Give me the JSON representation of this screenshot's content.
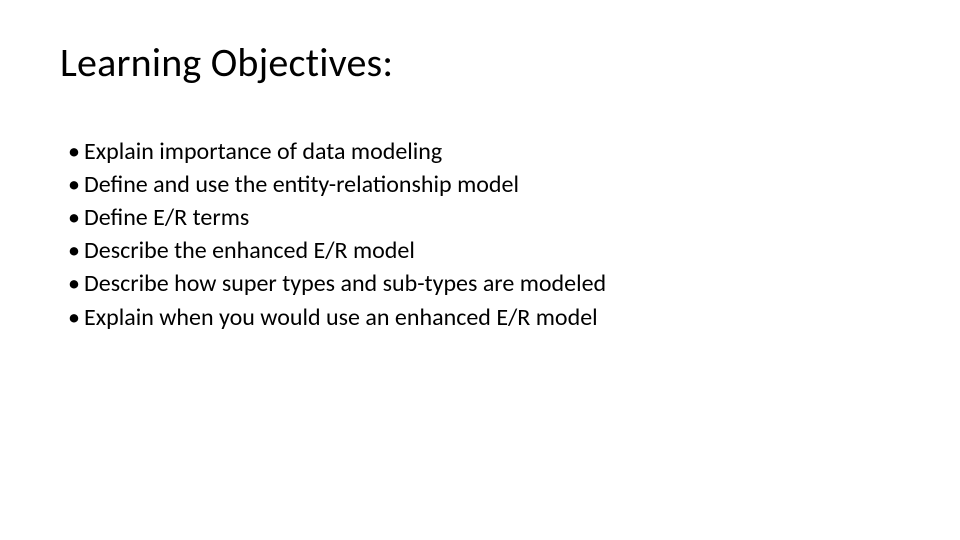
{
  "slide": {
    "title": "Learning Objectives:",
    "title_fontsize": 40,
    "title_color": "#000000",
    "background_color": "#ffffff",
    "bullets": [
      "Explain importance of data modeling",
      "Define and use the entity-relationship model",
      "Define E/R terms",
      "Describe the enhanced E/R model",
      "Describe how super types and sub-types are modeled",
      "Explain when you would use an enhanced E/R model"
    ],
    "bullet_fontsize": 24,
    "bullet_color": "#000000",
    "font_family": "Calibri"
  }
}
